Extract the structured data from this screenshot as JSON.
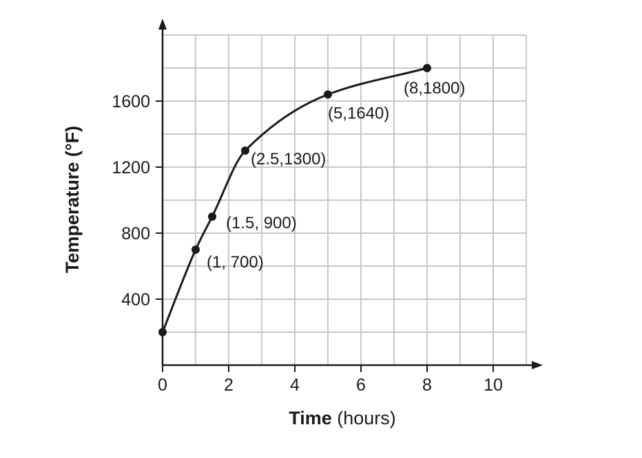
{
  "chart_data": {
    "type": "line",
    "xlabel": {
      "bold": "Time",
      "rest": " (hours)"
    },
    "ylabel": "Temperature (°F)",
    "xlim": [
      0,
      11
    ],
    "ylim": [
      0,
      2000
    ],
    "grid": true,
    "x_ticks": [
      0,
      2,
      4,
      6,
      8,
      10
    ],
    "y_ticks": [
      400,
      800,
      1200,
      1600
    ],
    "x_grid_step": 1,
    "y_grid_step": 200,
    "grid_x_max": 11,
    "grid_y_max": 2000,
    "series": [
      {
        "x": [
          0,
          1,
          1.5,
          2.5,
          5,
          8
        ],
        "y": [
          200,
          700,
          900,
          1300,
          1640,
          1800
        ],
        "labels": [
          "",
          "(1, 700)",
          "(1.5, 900)",
          "(2.5,1300)",
          "(5,1640)",
          "(8,1800)"
        ]
      }
    ],
    "colors": {
      "ink": "#1a1a1a",
      "grid": "#c8c8c8"
    }
  }
}
